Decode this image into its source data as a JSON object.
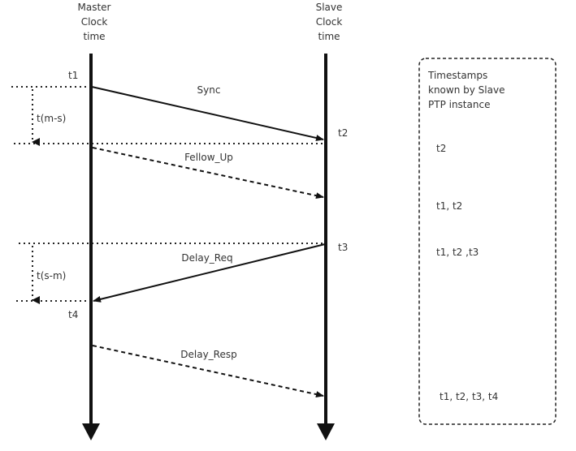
{
  "lifelines": {
    "master": {
      "line1": "Master",
      "line2": "Clock",
      "line3": "time"
    },
    "slave": {
      "line1": "Slave",
      "line2": "Clock",
      "line3": "time"
    }
  },
  "messages": {
    "sync": "Sync",
    "follow_up": "Fellow_Up",
    "delay_req": "Delay_Req",
    "delay_resp": "Delay_Resp"
  },
  "timestamps": {
    "t1": "t1",
    "t2": "t2",
    "t3": "t3",
    "t4": "t4"
  },
  "offsets": {
    "ms": "t(m-s)",
    "sm": "t(s-m)"
  },
  "panel": {
    "title1": "Timestamps",
    "title2": "known by Slave",
    "title3": "PTP instance",
    "rows": [
      "t2",
      "t1, t2",
      "t1, t2 ,t3",
      "t1, t2, t3, t4"
    ]
  }
}
